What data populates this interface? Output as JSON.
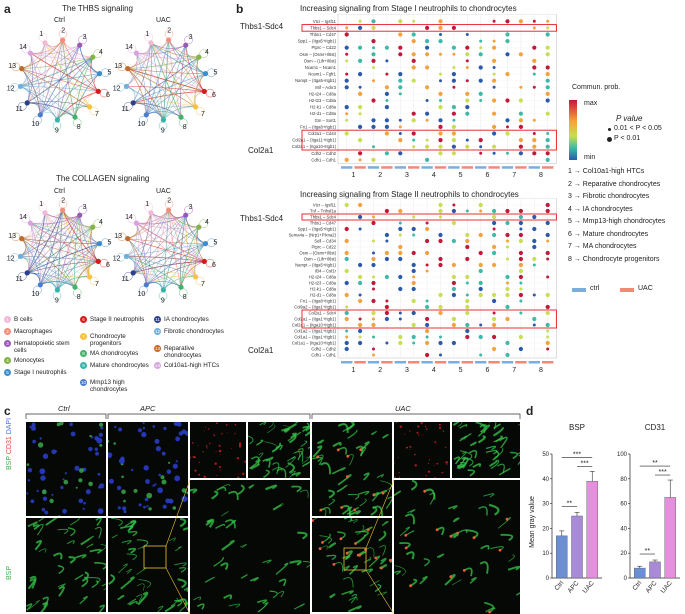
{
  "panels": {
    "a": {
      "letter": "a",
      "thbs_title": "The THBS signaling",
      "collagen_title": "The COLLAGEN signaling",
      "group_ctrl": "Ctrl",
      "group_uac": "UAC",
      "node_numbers": [
        "1",
        "2",
        "3",
        "4",
        "5",
        "6",
        "7",
        "8",
        "9",
        "10",
        "11",
        "12",
        "13",
        "14"
      ],
      "node_colors": [
        "#f2b8d6",
        "#f58d7c",
        "#9b59b6",
        "#85b346",
        "#3c8dcc",
        "#d7191c",
        "#f5c342",
        "#43b36c",
        "#37b3a8",
        "#4b7cc9",
        "#2c3e8c",
        "#6fb0d9",
        "#c06b2c",
        "#d9a3e0"
      ],
      "legend": [
        {
          "num": "1",
          "label": "B cells"
        },
        {
          "num": "2",
          "label": "Macrophages"
        },
        {
          "num": "3",
          "label": "Hematopoietic stem cells"
        },
        {
          "num": "4",
          "label": "Monocytes"
        },
        {
          "num": "5",
          "label": "Stage I neutrophils"
        },
        {
          "num": "6",
          "label": "Stage II neutrophils"
        },
        {
          "num": "7",
          "label": "Chondrocyte progenitors"
        },
        {
          "num": "8",
          "label": "MA chondrocytes"
        },
        {
          "num": "9",
          "label": "Mature chondrocytes"
        },
        {
          "num": "10",
          "label": "Mmp13 high chondrocytes"
        },
        {
          "num": "11",
          "label": "IA chondrocytes"
        },
        {
          "num": "12",
          "label": "Fibrotic chondrocytes"
        },
        {
          "num": "13",
          "label": "Reparative chondrocytes"
        },
        {
          "num": "14",
          "label": "Col10a1-high HTCs"
        }
      ]
    },
    "b": {
      "letter": "b",
      "top_title": "Increasing signaling from Stage I neutrophils to chondrocytes",
      "bottom_title": "Increasing signaling from Stage II neutrophils to chondrocytes",
      "side_thbs": "Thbs1-Sdc4",
      "side_col": "Col2a1",
      "top_rows": [
        "Vtcr – Igsf11",
        "Thbs1 – Sdc4",
        "Thbs1 – Cd47",
        "Spp1 – (Itga5+Itgb1)",
        "Ptprc – Cd22",
        "Osm – (Osmr+Il6st)",
        "Osm – (Lifr+Il6st)",
        "Ncam1 – Ncam1",
        "Ncam1 – Fgfr1",
        "Nampt – (Itga5+Itgb1)",
        "Mif – Ackr3",
        "H2-t24 – Cd8a",
        "H2-t23 – Cd8a",
        "H2-k1 – Cd8a",
        "H2-d1 – Cd8a",
        "Gm – Sort1",
        "Fn1 – (Itga8+Itgb1)",
        "Col2a1 – Cd44",
        "Col2a1 – (Itga11+Itgb1)",
        "Col2a1 – (Itga10+Itgb1)",
        "Cdh2 – Cdh2",
        "Cdh1 – Cdh1"
      ],
      "bottom_rows": [
        "Vtcr – Igsf11",
        "Tnf – Tnfrsf1a",
        "Thbs1 – Sdc4",
        "Thbs1 – Cd47",
        "Spp1 – (Itga5+Itgb1)",
        "Sema4a – (Nrp1+Plxna2)",
        "Sell – Cd34",
        "Ptprc – Cd22",
        "Osm – (Osmr+Il6st)",
        "Osm – (Lifr+Il6st)",
        "Nampt – (Itga5+Itgb1)",
        "Il34 – Csf1r",
        "H2-t24 – Cd8a",
        "H2-t23 – Cd8a",
        "H2-k1 – Cd8a",
        "H2-d1 – Cd8a",
        "Fn1 – (Itga8+Itgb1)",
        "Col9a2 – (Itga1+Itgb1)",
        "Col2a1 – Sdc4",
        "Col2a1 – (Itga1+Itgb1)",
        "Col2a1 – (Itga10+Itgb1)",
        "Col1a2 – (Itga1+Itgb1)",
        "Col1a1 – (Itga1+Itgb1)",
        "Col1a1 – (Itga10+Itgb1)",
        "Cdh2 – Cdh2",
        "Cdh1 – Cdh1"
      ],
      "x_ticks": [
        "1",
        "2",
        "3",
        "4",
        "5",
        "6",
        "7",
        "8"
      ],
      "commun_label": "Commun. prob.",
      "commun_max": "max",
      "commun_min": "min",
      "pvalue_label": "P value",
      "pvalue_mid": "0.01 < P < 0.05",
      "pvalue_low": "P < 0.01",
      "cell_legend": [
        "1 → Col10a1-high HTCs",
        "2 → Reparative chondrocytes",
        "3 → Fibrotic chondrocytes",
        "4 → IA chondrocytes",
        "5 → Mmp13-high chondrocytes",
        "6 → Mature chondrocytes",
        "7 → MA chondrocytes",
        "8 → Chondrocyte progenitors"
      ],
      "ctrl_label": "ctrl",
      "uac_label": "UAC",
      "ctrl_color": "#7aaedf",
      "uac_color": "#f08a78"
    },
    "c": {
      "letter": "c",
      "groups": [
        "Ctrl",
        "APC",
        "UAC"
      ],
      "stain_bsp": "BSP",
      "stain_cd31": "CD31",
      "stain_dapi": "DAPI"
    },
    "d": {
      "letter": "d",
      "ylabel": "Mean gray value",
      "charts": [
        {
          "title": "BSP",
          "categories": [
            "Ctrl",
            "APC",
            "UAC"
          ],
          "values": [
            17,
            25,
            39
          ],
          "errors": [
            2,
            1.5,
            4
          ],
          "ylim": [
            0,
            50
          ],
          "yticks": [
            "0",
            "10",
            "20",
            "30",
            "40",
            "50"
          ],
          "sig": [
            "**",
            "***",
            "***"
          ]
        },
        {
          "title": "CD31",
          "categories": [
            "Ctrl",
            "APC",
            "UAC"
          ],
          "values": [
            8,
            13,
            65
          ],
          "errors": [
            1.5,
            1.5,
            14
          ],
          "ylim": [
            0,
            100
          ],
          "yticks": [
            "0",
            "20",
            "40",
            "60",
            "80",
            "100"
          ],
          "sig": [
            "**",
            "***",
            "**"
          ]
        }
      ],
      "bar_colors": [
        "#6b8fd1",
        "#a98ad6",
        "#e68fdd"
      ]
    }
  },
  "chart_data": [
    {
      "type": "bar",
      "title": "BSP",
      "categories": [
        "Ctrl",
        "APC",
        "UAC"
      ],
      "values": [
        17,
        25,
        39
      ],
      "ylabel": "Mean gray value",
      "ylim": [
        0,
        50
      ]
    },
    {
      "type": "bar",
      "title": "CD31",
      "categories": [
        "Ctrl",
        "APC",
        "UAC"
      ],
      "values": [
        8,
        13,
        65
      ],
      "ylabel": "Mean gray value",
      "ylim": [
        0,
        100
      ]
    }
  ]
}
